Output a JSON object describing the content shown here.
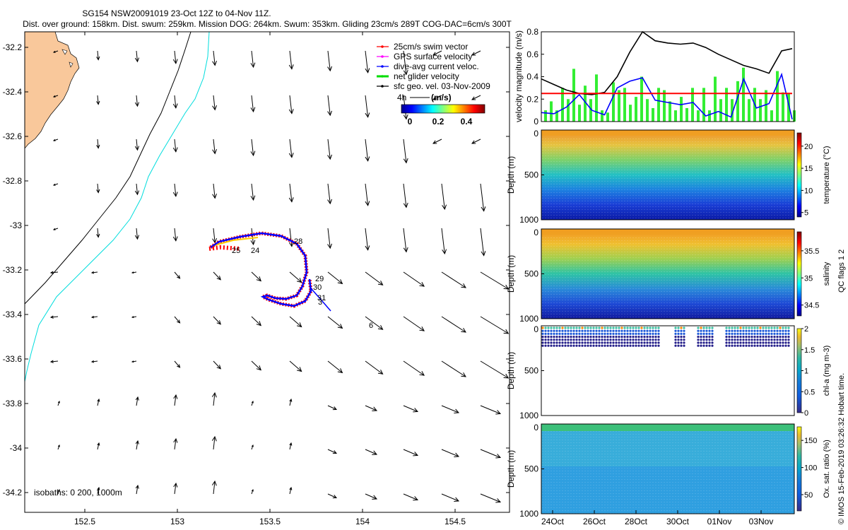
{
  "title": {
    "line1": "SG154 NSW20091019 23-Oct 12Z to 04-Nov 11Z.",
    "line2": "Dist. over ground: 158km. Dist. swum: 259km. Mission DOG: 264km. Swum: 353km. Gliding 23cm/s 289T COG-DAC=6cm/s 300T"
  },
  "map": {
    "xticks": [
      "152.5",
      "153",
      "153.5",
      "154",
      "154.5"
    ],
    "yticks": [
      "-32.2",
      "-32.4",
      "-32.6",
      "-32.8",
      "-33",
      "-33.2",
      "-33.4",
      "-33.6",
      "-33.8",
      "-34",
      "-34.2"
    ],
    "legend": [
      {
        "label": "25cm/s swim vector",
        "color": "#ff0000"
      },
      {
        "label": "GPS surface velocity",
        "color": "#ff00ff"
      },
      {
        "label": "dive-avg current veloc.",
        "color": "#0000ff"
      },
      {
        "label": "net glider velocity",
        "color": "#00dd00"
      },
      {
        "label": "sfc geo. vel. 03-Nov-2009",
        "color": "#000000"
      }
    ],
    "scale_label": "4h",
    "colorbar": {
      "title": "(m/s)",
      "ticks": [
        "0",
        "0.2",
        "0.4"
      ]
    },
    "isobaths": "isobaths: 0   200, 1000m",
    "day_labels": [
      "25",
      "24",
      "28",
      "29",
      "30",
      "31",
      "3",
      "6"
    ]
  },
  "chart_data": [
    {
      "type": "line",
      "name": "velocity-magnitude",
      "title": "",
      "ylabel": "velocity magnitude (m/s)",
      "ylim": [
        0,
        0.8
      ],
      "yticks": [
        "0",
        "0.2",
        "0.4",
        "0.6",
        "0.8"
      ],
      "x_days": [
        0,
        0.6,
        1.2,
        1.8,
        2.4,
        3.0,
        3.6,
        4.2,
        4.8,
        5.4,
        6.0,
        6.6,
        7.2,
        7.8,
        8.4,
        9.0,
        9.6,
        10.2,
        10.8,
        11.4,
        11.9
      ],
      "series": [
        {
          "name": "sfc geo. vel.",
          "color": "#000000",
          "values": [
            0.38,
            0.33,
            0.28,
            0.25,
            0.24,
            0.26,
            0.4,
            0.62,
            0.8,
            0.72,
            0.7,
            0.69,
            0.7,
            0.66,
            0.6,
            0.55,
            0.5,
            0.47,
            0.43,
            0.63,
            0.65
          ]
        },
        {
          "name": "dive-avg current",
          "color": "#0000ff",
          "values": [
            0.08,
            0.07,
            0.13,
            0.24,
            0.1,
            0.06,
            0.3,
            0.36,
            0.39,
            0.19,
            0.17,
            0.15,
            0.17,
            0.05,
            0.09,
            0.04,
            0.38,
            0.12,
            0.16,
            0.42,
            0.02
          ]
        },
        {
          "name": "25cm/s swim",
          "color": "#ff0000",
          "values": [
            0.25,
            0.25,
            0.25,
            0.25,
            0.25,
            0.25,
            0.25,
            0.25,
            0.25,
            0.25,
            0.25,
            0.25,
            0.25,
            0.25,
            0.25,
            0.25,
            0.25,
            0.25,
            0.25,
            0.25,
            0.25
          ]
        }
      ]
    },
    {
      "type": "heatmap",
      "name": "temperature",
      "ylabel": "Depth (m)",
      "yticks": [
        "500",
        "1000"
      ],
      "colorbar_label": "temperature (°C)",
      "colorbar_ticks": [
        "5",
        "10",
        "15",
        "20"
      ],
      "color_range": [
        4,
        23
      ],
      "profile": [
        {
          "z": 0,
          "v": 21.5
        },
        {
          "z": 80,
          "v": 18
        },
        {
          "z": 200,
          "v": 14
        },
        {
          "z": 350,
          "v": 11
        },
        {
          "z": 550,
          "v": 8
        },
        {
          "z": 750,
          "v": 6
        },
        {
          "z": 1000,
          "v": 5
        }
      ]
    },
    {
      "type": "heatmap",
      "name": "salinity",
      "ylabel": "Depth (m)",
      "yticks": [
        "500",
        "1000"
      ],
      "colorbar_label": "salinity",
      "colorbar_ticks": [
        "34.5",
        "35",
        "35.5"
      ],
      "color_range": [
        34.3,
        35.85
      ],
      "profile": [
        {
          "z": 0,
          "v": 35.55
        },
        {
          "z": 120,
          "v": 35.45
        },
        {
          "z": 250,
          "v": 35.2
        },
        {
          "z": 400,
          "v": 35.0
        },
        {
          "z": 600,
          "v": 34.75
        },
        {
          "z": 800,
          "v": 34.55
        },
        {
          "z": 1000,
          "v": 34.45
        }
      ]
    },
    {
      "type": "heatmap",
      "name": "chlorophyll",
      "ylabel": "Depth (m)",
      "yticks": [
        "500",
        "1000"
      ],
      "colorbar_label": "chl-a (mg m-3)",
      "colorbar_ticks": [
        "0",
        "0.5",
        "1",
        "1.5",
        "2"
      ],
      "color_range": [
        0,
        2
      ],
      "profile": [
        {
          "z": 0,
          "v": 0.9
        },
        {
          "z": 40,
          "v": 0.5
        },
        {
          "z": 80,
          "v": 0.15
        },
        {
          "z": 120,
          "v": 0.05
        }
      ]
    },
    {
      "type": "heatmap",
      "name": "oxygen",
      "ylabel": "Depth (m)",
      "yticks": [
        "500",
        "1000"
      ],
      "colorbar_label": "Ox. sat. ratio (%)",
      "colorbar_ticks": [
        "50",
        "100",
        "150"
      ],
      "color_range": [
        20,
        175
      ],
      "profile": [
        {
          "z": 0,
          "v": 112
        },
        {
          "z": 100,
          "v": 95
        },
        {
          "z": 300,
          "v": 82
        },
        {
          "z": 600,
          "v": 74
        },
        {
          "z": 1000,
          "v": 70
        }
      ]
    }
  ],
  "time_axis": [
    "24Oct",
    "26Oct",
    "28Oct",
    "30Oct",
    "01Nov",
    "03Nov"
  ],
  "depth_zero": "0",
  "qc_label": "QC flags 1  2",
  "footer": "© IMOS 15-Feb-2019 03:26:32 Hobart time."
}
